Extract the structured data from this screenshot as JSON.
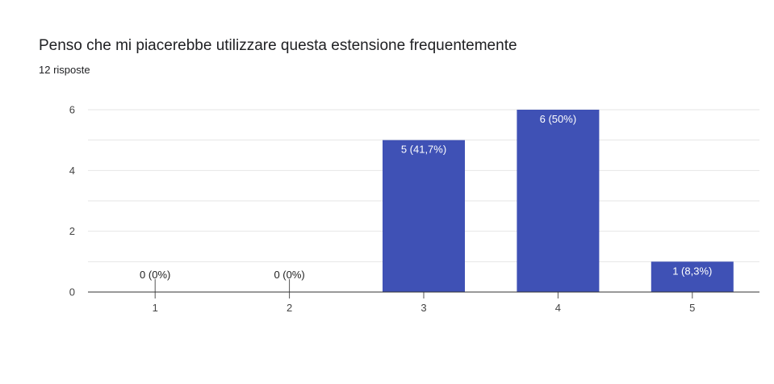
{
  "question": {
    "title": "Penso che mi piacerebbe utilizzare questa estensione frequentemente",
    "responses": "12 risposte"
  },
  "colors": {
    "bar": "#3f51b5",
    "grid": "#e6e6e6",
    "axis": "#333333",
    "label_inside": "#ffffff",
    "label_outside": "#222222"
  },
  "chart_data": {
    "type": "bar",
    "categories": [
      "1",
      "2",
      "3",
      "4",
      "5"
    ],
    "values": [
      0,
      0,
      5,
      6,
      1
    ],
    "data_labels": [
      "0 (0%)",
      "0 (0%)",
      "5 (41,7%)",
      "6 (50%)",
      "1 (8,3%)"
    ],
    "title": "Penso che mi piacerebbe utilizzare questa estensione frequentemente",
    "xlabel": "",
    "ylabel": "",
    "ylim": [
      0,
      6
    ],
    "yticks": [
      0,
      2,
      4,
      6
    ],
    "grid": true,
    "legend": "none"
  }
}
